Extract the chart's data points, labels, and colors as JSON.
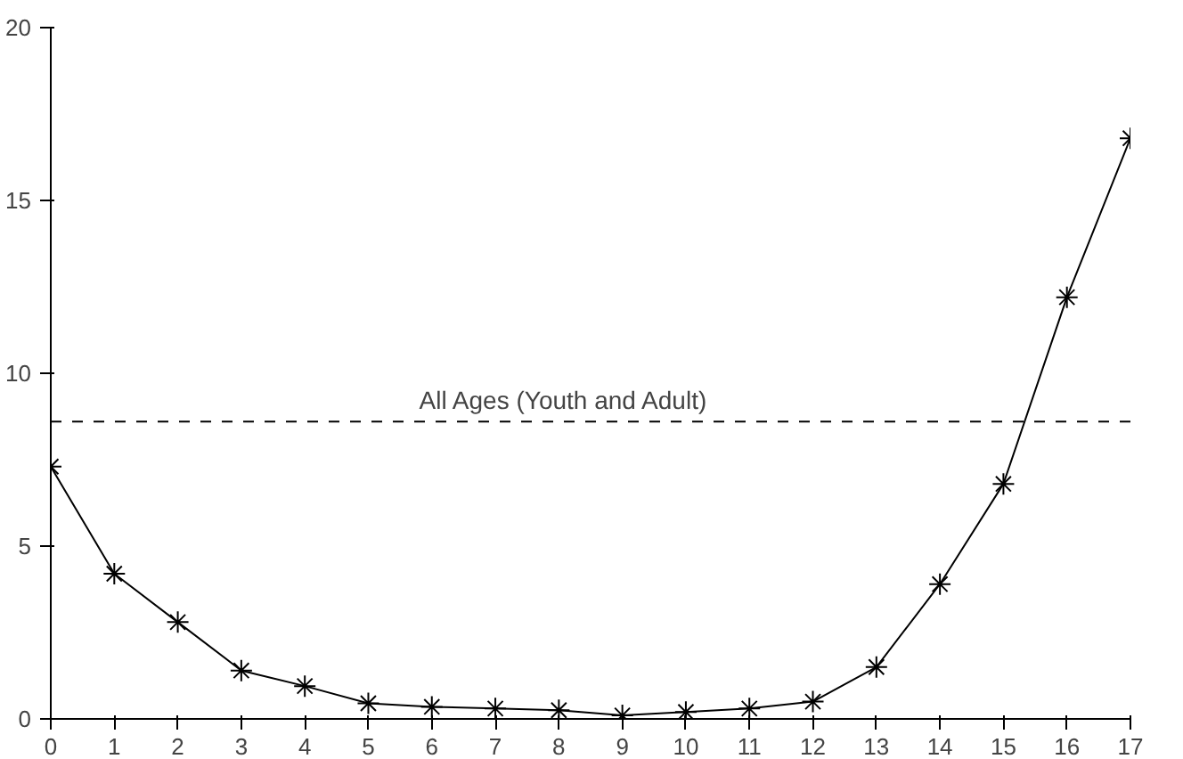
{
  "chart_data": {
    "type": "line",
    "x": [
      0,
      1,
      2,
      3,
      4,
      5,
      6,
      7,
      8,
      9,
      10,
      11,
      12,
      13,
      14,
      15,
      16,
      17
    ],
    "series": [
      {
        "color": "#000000",
        "values": [
          7.3,
          4.2,
          2.8,
          1.4,
          0.95,
          0.45,
          0.35,
          0.3,
          0.25,
          0.1,
          0.2,
          0.3,
          0.5,
          1.5,
          3.9,
          6.8,
          12.2,
          16.8
        ]
      }
    ],
    "xlim": [
      0,
      17
    ],
    "ylim": [
      0,
      20
    ],
    "xticks": [
      0,
      1,
      2,
      3,
      4,
      5,
      6,
      7,
      8,
      9,
      10,
      11,
      12,
      13,
      14,
      15,
      16,
      17
    ],
    "yticks": [
      0,
      5,
      10,
      15,
      20
    ],
    "ref_lines": [
      {
        "axis": "y",
        "value": 8.6,
        "label": "All Ages (Youth and Adult)",
        "color": "#000000",
        "line_style": "dashed"
      }
    ],
    "marker": "cross",
    "line_style": "solid",
    "grid": false
  }
}
